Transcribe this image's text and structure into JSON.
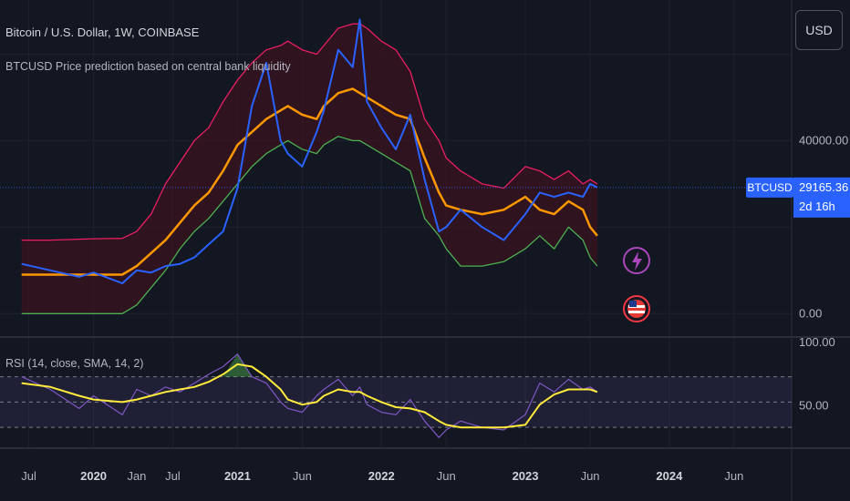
{
  "header": {
    "symbol_title": "Bitcoin / U.S. Dollar, 1W, COINBASE",
    "indicator_title": "BTCUSD Price prediction based on central bank liquidity"
  },
  "currency_button": "USD",
  "price_tag": {
    "symbol": "BTCUSD",
    "price": "29165.36",
    "countdown": "2d 16h"
  },
  "rsi_label": "RSI (14, close, SMA, 14, 2)",
  "colors": {
    "background": "#131722",
    "price": "#2962ff",
    "upper": "#e91e63",
    "mid": "#ff9800",
    "lower": "#4caf50",
    "band_fill": "#3a1420",
    "rsi": "#7e57c2",
    "rsi_ma": "#ffeb3b",
    "tag": "#2962ff"
  },
  "chart_data": [
    {
      "type": "line",
      "x_axis": [
        "Jul",
        "2020",
        "Jan",
        "Jul",
        "2021",
        "Jun",
        "2022",
        "Jun",
        "2023",
        "Jun",
        "2024",
        "Jun"
      ],
      "x_axis_bold": [
        "2020",
        "2021",
        "2022",
        "2023",
        "2024"
      ],
      "y_ticks": [
        "40000.00",
        "0.00"
      ],
      "x": [
        2019.5,
        2019.7,
        2019.9,
        2020.0,
        2020.2,
        2020.3,
        2020.4,
        2020.5,
        2020.6,
        2020.7,
        2020.8,
        2020.9,
        2021.0,
        2021.1,
        2021.2,
        2021.3,
        2021.35,
        2021.45,
        2021.55,
        2021.6,
        2021.7,
        2021.8,
        2021.85,
        2021.9,
        2022.0,
        2022.1,
        2022.2,
        2022.3,
        2022.4,
        2022.45,
        2022.55,
        2022.7,
        2022.85,
        2023.0,
        2023.1,
        2023.2,
        2023.3,
        2023.4,
        2023.45,
        2023.5
      ],
      "series": [
        {
          "key": "upper",
          "values": [
            17000,
            17000,
            17200,
            17300,
            17400,
            19000,
            23000,
            30000,
            35000,
            40000,
            43000,
            49000,
            54000,
            58000,
            61000,
            62000,
            63000,
            61000,
            60000,
            62000,
            66000,
            67000,
            67000,
            66000,
            63000,
            61000,
            56000,
            45000,
            40000,
            36000,
            33000,
            30000,
            29000,
            34000,
            33000,
            31000,
            33000,
            30000,
            31000,
            30000
          ]
        },
        {
          "key": "mid",
          "values": [
            9000,
            9000,
            9000,
            9000,
            9000,
            11000,
            14000,
            17000,
            21000,
            25000,
            28000,
            33000,
            39000,
            42000,
            45000,
            47000,
            48000,
            46000,
            45000,
            48000,
            51000,
            52000,
            51000,
            50000,
            48000,
            46000,
            45000,
            36000,
            28000,
            25000,
            24000,
            23000,
            24000,
            27000,
            24000,
            23000,
            26000,
            24000,
            20000,
            18000
          ]
        },
        {
          "key": "lower",
          "values": [
            0,
            0,
            0,
            0,
            0,
            2000,
            6000,
            10000,
            15000,
            19000,
            22000,
            26000,
            30000,
            34000,
            37000,
            39000,
            40000,
            38000,
            37000,
            39000,
            41000,
            40000,
            40000,
            39000,
            37000,
            35000,
            33000,
            22000,
            18000,
            15000,
            11000,
            11000,
            12000,
            15000,
            18000,
            15000,
            20000,
            17000,
            13000,
            11000
          ]
        },
        {
          "key": "price",
          "values": [
            11500,
            10000,
            8500,
            9500,
            7000,
            10000,
            9500,
            11000,
            11500,
            13000,
            16000,
            19000,
            29000,
            48000,
            58000,
            40000,
            37000,
            34000,
            42000,
            47000,
            61000,
            57000,
            68000,
            49000,
            43000,
            38000,
            46000,
            31000,
            19000,
            20000,
            24000,
            20000,
            17000,
            23000,
            28000,
            27000,
            28000,
            27000,
            30000,
            29165
          ]
        }
      ],
      "ylim": [
        -5000,
        70000
      ],
      "last_value": 29165.36
    },
    {
      "type": "line",
      "y_ticks": [
        "100.00",
        "50.00"
      ],
      "levels": [
        70,
        50,
        30
      ],
      "x": [
        2019.5,
        2019.7,
        2019.9,
        2020.0,
        2020.2,
        2020.3,
        2020.4,
        2020.5,
        2020.6,
        2020.7,
        2020.8,
        2020.9,
        2021.0,
        2021.1,
        2021.2,
        2021.3,
        2021.35,
        2021.45,
        2021.55,
        2021.6,
        2021.7,
        2021.8,
        2021.85,
        2021.9,
        2022.0,
        2022.1,
        2022.2,
        2022.3,
        2022.4,
        2022.45,
        2022.55,
        2022.7,
        2022.85,
        2023.0,
        2023.1,
        2023.2,
        2023.3,
        2023.4,
        2023.45,
        2023.5
      ],
      "series": [
        {
          "key": "rsi",
          "values": [
            70,
            60,
            45,
            55,
            40,
            60,
            55,
            62,
            58,
            65,
            72,
            78,
            88,
            70,
            65,
            50,
            45,
            42,
            55,
            60,
            68,
            55,
            62,
            48,
            42,
            40,
            52,
            35,
            22,
            28,
            35,
            30,
            28,
            40,
            65,
            58,
            68,
            60,
            62,
            58
          ]
        },
        {
          "key": "rsi_ma",
          "values": [
            65,
            62,
            55,
            52,
            50,
            52,
            55,
            58,
            60,
            62,
            66,
            72,
            80,
            78,
            70,
            60,
            52,
            48,
            50,
            55,
            60,
            58,
            58,
            55,
            50,
            46,
            45,
            42,
            35,
            32,
            30,
            30,
            30,
            32,
            48,
            56,
            60,
            60,
            60,
            58
          ]
        }
      ],
      "ylim": [
        15,
        100
      ]
    }
  ]
}
